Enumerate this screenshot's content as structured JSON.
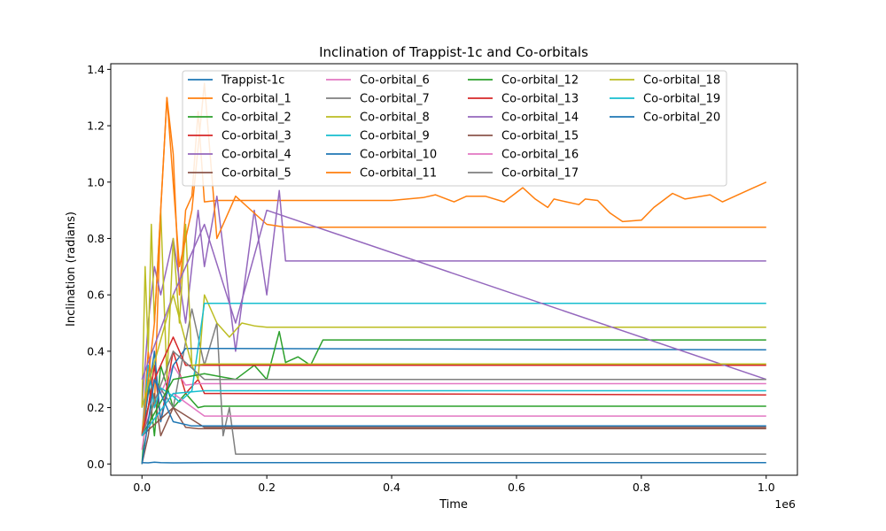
{
  "chart_data": {
    "type": "line",
    "title": "Inclination of Trappist-1c and Co-orbitals",
    "xlabel": "Time",
    "ylabel": "Inclination (radians)",
    "x_offset_label": "1e6",
    "xlim": [
      -0.05,
      1.05
    ],
    "ylim": [
      -0.04,
      1.42
    ],
    "x_ticks": [
      0.0,
      0.2,
      0.4,
      0.6,
      0.8,
      1.0
    ],
    "x_tick_labels": [
      "0.0",
      "0.2",
      "0.4",
      "0.6",
      "0.8",
      "1.0"
    ],
    "y_ticks": [
      0.0,
      0.2,
      0.4,
      0.6,
      0.8,
      1.0,
      1.2,
      1.4
    ],
    "y_tick_labels": [
      "0.0",
      "0.2",
      "0.4",
      "0.6",
      "0.8",
      "1.0",
      "1.2",
      "1.4"
    ],
    "legend_location": "top-center",
    "legend_columns": 4,
    "series": [
      {
        "name": "Trappist-1c",
        "color": "#1f77b4",
        "x": [
          0,
          0.01,
          0.02,
          0.03,
          0.05,
          0.1,
          1.0
        ],
        "y": [
          0.005,
          0.004,
          0.006,
          0.005,
          0.004,
          0.005,
          0.005
        ]
      },
      {
        "name": "Co-orbital_1",
        "color": "#ff7f0e",
        "x": [
          0,
          0.01,
          0.02,
          0.03,
          0.04,
          0.05,
          0.06,
          0.07,
          0.08,
          0.09,
          0.1,
          0.12,
          0.2,
          0.3,
          0.4,
          0.45,
          0.47,
          0.5,
          0.52,
          0.55,
          0.58,
          0.61,
          0.63,
          0.65,
          0.66,
          0.68,
          0.7,
          0.71,
          0.73,
          0.75,
          0.77,
          0.8,
          0.82,
          0.85,
          0.87,
          0.91,
          0.93,
          0.95,
          0.98,
          1.0
        ],
        "y": [
          0.1,
          0.4,
          0.2,
          0.9,
          1.3,
          1.1,
          0.6,
          0.9,
          0.95,
          1.25,
          0.93,
          0.935,
          0.935,
          0.935,
          0.935,
          0.945,
          0.955,
          0.93,
          0.95,
          0.95,
          0.93,
          0.98,
          0.94,
          0.91,
          0.94,
          0.93,
          0.92,
          0.94,
          0.935,
          0.89,
          0.86,
          0.865,
          0.91,
          0.96,
          0.94,
          0.955,
          0.93,
          0.95,
          0.98,
          1.0
        ]
      },
      {
        "name": "Co-orbital_2",
        "color": "#2ca02c",
        "x": [
          0,
          0.01,
          0.02,
          0.03,
          0.05,
          0.07,
          0.09,
          0.1,
          1.0
        ],
        "y": [
          0.0,
          0.3,
          0.1,
          0.35,
          0.2,
          0.25,
          0.2,
          0.205,
          0.205
        ]
      },
      {
        "name": "Co-orbital_3",
        "color": "#d62728",
        "x": [
          0,
          0.01,
          0.02,
          0.03,
          0.05,
          0.07,
          0.09,
          0.1,
          1.0
        ],
        "y": [
          0.1,
          0.2,
          0.35,
          0.15,
          0.4,
          0.25,
          0.3,
          0.25,
          0.245
        ]
      },
      {
        "name": "Co-orbital_4",
        "color": "#9467bd",
        "x": [
          0,
          0.01,
          0.02,
          0.03,
          0.05,
          0.07,
          0.09,
          0.1,
          0.12,
          0.15,
          0.18,
          0.2,
          0.22,
          0.23,
          0.25,
          1.0
        ],
        "y": [
          0.2,
          0.5,
          0.7,
          0.6,
          0.8,
          0.5,
          0.9,
          0.7,
          0.95,
          0.4,
          0.9,
          0.6,
          0.97,
          0.72,
          0.72,
          0.72
        ]
      },
      {
        "name": "Co-orbital_5",
        "color": "#8c564b",
        "x": [
          0,
          0.01,
          0.02,
          0.03,
          0.05,
          0.07,
          0.09,
          0.1,
          1.0
        ],
        "y": [
          0.0,
          0.1,
          0.25,
          0.1,
          0.2,
          0.13,
          0.125,
          0.125,
          0.125
        ]
      },
      {
        "name": "Co-orbital_6",
        "color": "#e377c2",
        "x": [
          0,
          0.01,
          0.02,
          0.03,
          0.05,
          0.07,
          0.09,
          0.1,
          1.0
        ],
        "y": [
          0.05,
          0.2,
          0.3,
          0.25,
          0.35,
          0.28,
          0.285,
          0.285,
          0.285
        ]
      },
      {
        "name": "Co-orbital_7",
        "color": "#7f7f7f",
        "x": [
          0,
          0.02,
          0.05,
          0.08,
          0.1,
          0.12,
          0.13,
          0.14,
          0.15,
          1.0
        ],
        "y": [
          0.1,
          0.3,
          0.2,
          0.55,
          0.35,
          0.5,
          0.1,
          0.2,
          0.035,
          0.035
        ]
      },
      {
        "name": "Co-orbital_8",
        "color": "#bcbd22",
        "x": [
          0,
          0.005,
          0.01,
          0.015,
          0.02,
          0.03,
          0.04,
          0.05,
          0.06,
          0.07,
          0.08,
          0.09,
          0.1,
          0.12,
          0.14,
          0.16,
          0.18,
          0.2,
          1.0
        ],
        "y": [
          0.2,
          0.7,
          0.4,
          0.85,
          0.5,
          0.9,
          0.3,
          0.8,
          0.5,
          0.85,
          0.35,
          0.3,
          0.6,
          0.5,
          0.45,
          0.5,
          0.49,
          0.485,
          0.485
        ]
      },
      {
        "name": "Co-orbital_9",
        "color": "#17becf",
        "x": [
          0,
          0.01,
          0.02,
          0.03,
          0.05,
          0.06,
          0.08,
          0.1,
          1.0
        ],
        "y": [
          0.1,
          0.35,
          0.2,
          0.27,
          0.24,
          0.22,
          0.26,
          0.57,
          0.57
        ]
      },
      {
        "name": "Co-orbital_10",
        "color": "#1f77b4",
        "x": [
          0,
          0.01,
          0.02,
          0.03,
          0.05,
          0.07,
          0.1,
          1.0
        ],
        "y": [
          0.1,
          0.25,
          0.4,
          0.15,
          0.35,
          0.41,
          0.41,
          0.405
        ]
      },
      {
        "name": "Co-orbital_11",
        "color": "#ff7f0e",
        "x": [
          0,
          0.02,
          0.04,
          0.06,
          0.08,
          0.1,
          0.12,
          0.15,
          0.2,
          0.23,
          1.0
        ],
        "y": [
          0.1,
          0.5,
          1.3,
          0.7,
          0.9,
          1.35,
          0.8,
          0.95,
          0.85,
          0.84,
          0.84
        ]
      },
      {
        "name": "Co-orbital_12",
        "color": "#2ca02c",
        "x": [
          0,
          0.05,
          0.1,
          0.15,
          0.18,
          0.2,
          0.22,
          0.23,
          0.25,
          0.27,
          0.29,
          0.3,
          1.0
        ],
        "y": [
          0.1,
          0.3,
          0.32,
          0.3,
          0.35,
          0.3,
          0.47,
          0.36,
          0.38,
          0.35,
          0.44,
          0.44,
          0.44
        ]
      },
      {
        "name": "Co-orbital_13",
        "color": "#d62728",
        "x": [
          0,
          0.02,
          0.05,
          0.07,
          0.1,
          1.0
        ],
        "y": [
          0.1,
          0.3,
          0.45,
          0.35,
          0.35,
          0.35
        ]
      },
      {
        "name": "Co-orbital_14",
        "color": "#9467bd",
        "x": [
          0,
          0.05,
          0.1,
          0.15,
          0.2,
          1.0
        ],
        "y": [
          0.3,
          0.6,
          0.85,
          0.5,
          0.9,
          0.3
        ]
      },
      {
        "name": "Co-orbital_15",
        "color": "#8c564b",
        "x": [
          0,
          0.05,
          0.1,
          1.0
        ],
        "y": [
          0.1,
          0.2,
          0.13,
          0.13
        ]
      },
      {
        "name": "Co-orbital_16",
        "color": "#e377c2",
        "x": [
          0,
          0.05,
          0.1,
          1.0
        ],
        "y": [
          0.1,
          0.25,
          0.17,
          0.17
        ]
      },
      {
        "name": "Co-orbital_17",
        "color": "#7f7f7f",
        "x": [
          0,
          0.05,
          0.1,
          1.0
        ],
        "y": [
          0.1,
          0.4,
          0.3,
          0.3
        ]
      },
      {
        "name": "Co-orbital_18",
        "color": "#bcbd22",
        "x": [
          0,
          0.05,
          0.08,
          0.1,
          1.0
        ],
        "y": [
          0.2,
          0.6,
          0.35,
          0.355,
          0.355
        ]
      },
      {
        "name": "Co-orbital_19",
        "color": "#17becf",
        "x": [
          0,
          0.05,
          0.1,
          1.0
        ],
        "y": [
          0.1,
          0.25,
          0.26,
          0.26
        ]
      },
      {
        "name": "Co-orbital_20",
        "color": "#1f77b4",
        "x": [
          0,
          0.02,
          0.05,
          0.08,
          1.0
        ],
        "y": [
          0.0,
          0.3,
          0.15,
          0.135,
          0.135
        ]
      }
    ]
  }
}
